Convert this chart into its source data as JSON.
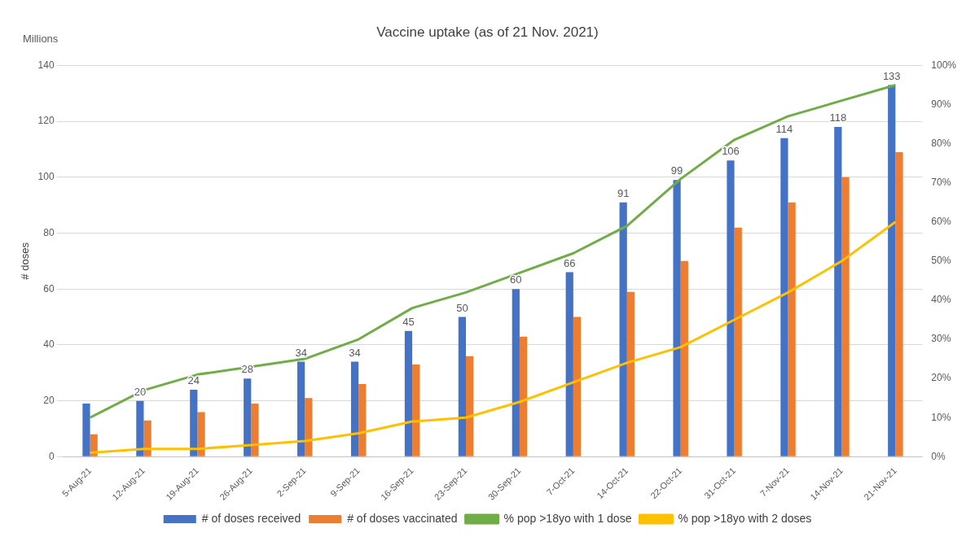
{
  "chart_data": {
    "type": "bar",
    "title": "Vaccine uptake (as of 21 Nov. 2021)",
    "ylabel": "# doses",
    "annotations": [
      "Millions"
    ],
    "categories": [
      "5-Aug-21",
      "12-Aug-21",
      "19-Aug-21",
      "26-Aug-21",
      "2-Sep-21",
      "9-Sep-21",
      "16-Sep-21",
      "23-Sep-21",
      "30-Sep-21",
      "7-Oct-21",
      "14-Oct-21",
      "22-Oct-21",
      "31-Oct-21",
      "7-Nov-21",
      "14-Nov-21",
      "21-Nov-21"
    ],
    "series": [
      {
        "name": "# of doses received",
        "color": "#4472c4",
        "values": [
          19,
          20,
          24,
          28,
          34,
          34,
          45,
          50,
          60,
          66,
          91,
          99,
          106,
          114,
          118,
          133
        ],
        "value_labels": [
          null,
          "20",
          "24",
          "28",
          "34",
          "34",
          "45",
          "50",
          "60",
          "66",
          "91",
          "99",
          "106",
          "114",
          "118",
          "133"
        ]
      },
      {
        "name": "# of doses vaccinated",
        "color": "#ed7d31",
        "values": [
          8,
          13,
          16,
          19,
          21,
          26,
          33,
          36,
          43,
          50,
          59,
          70,
          82,
          91,
          100,
          109
        ]
      },
      {
        "name": "% pop >18yo with 1 dose",
        "type": "line",
        "axis": "y2",
        "color": "#70ad47",
        "values": [
          10,
          17,
          21,
          23,
          25,
          30,
          38,
          42,
          47,
          52,
          59,
          71,
          81,
          87,
          91,
          95
        ]
      },
      {
        "name": "% pop >18yo with 2 doses",
        "type": "line",
        "axis": "y2",
        "color": "#ffc000",
        "values": [
          1,
          2,
          2,
          3,
          4,
          6,
          9,
          10,
          14,
          19,
          24,
          28,
          35,
          42,
          50,
          60
        ]
      }
    ],
    "ylim": [
      0,
      140
    ],
    "yticks": [
      0,
      20,
      40,
      60,
      80,
      100,
      120,
      140
    ],
    "y2lim": [
      0,
      100
    ],
    "y2ticks": [
      {
        "value": 0,
        "label": "0%"
      },
      {
        "value": 10,
        "label": "10%"
      },
      {
        "value": 20,
        "label": "20%"
      },
      {
        "value": 30,
        "label": "30%"
      },
      {
        "value": 40,
        "label": "40%"
      },
      {
        "value": 50,
        "label": "50%"
      },
      {
        "value": 60,
        "label": "60%"
      },
      {
        "value": 70,
        "label": "70%"
      },
      {
        "value": 80,
        "label": "80%"
      },
      {
        "value": 90,
        "label": "90%"
      },
      {
        "value": 100,
        "label": "100%"
      }
    ],
    "grid": "y",
    "legend": "bottom",
    "marker": "none",
    "line_style": "solid"
  }
}
